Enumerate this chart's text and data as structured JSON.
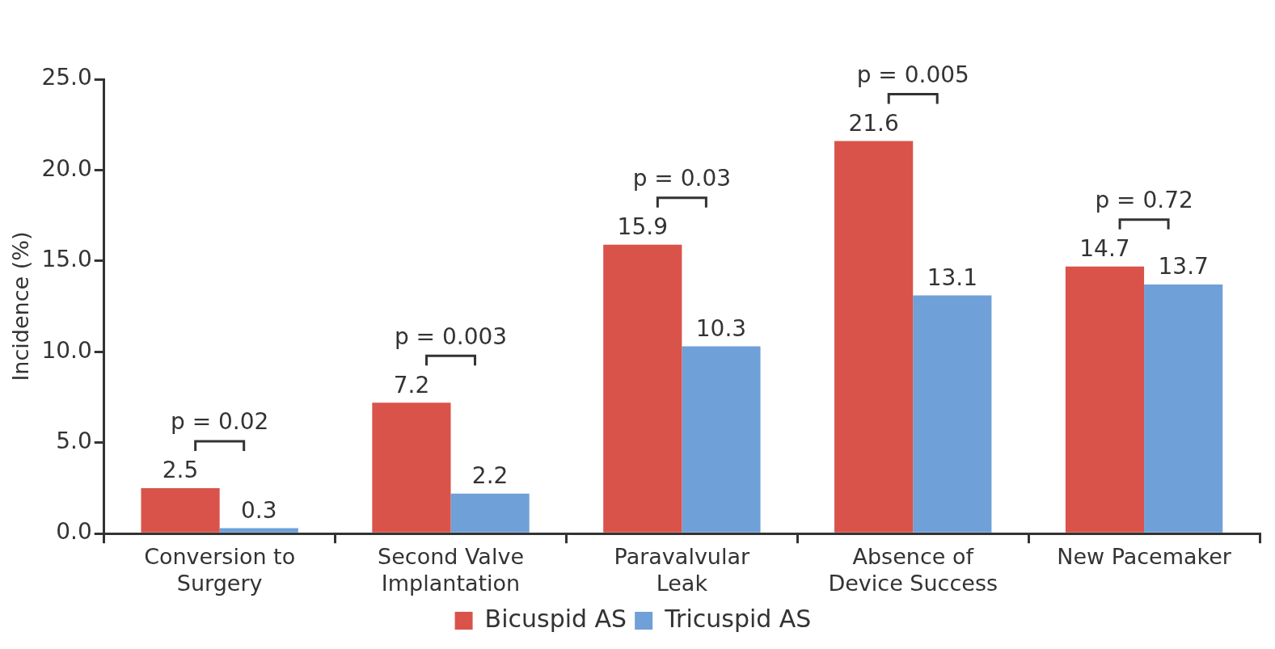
{
  "chart_data": {
    "type": "bar",
    "ylabel": "Incidence (%)",
    "categories": [
      "Conversion to\nSurgery",
      "Second Valve\nImplantation",
      "Paravalvular\nLeak",
      "Absence of\nDevice Success",
      "New Pacemaker"
    ],
    "series": [
      {
        "name": "Bicuspid AS",
        "color": "#d9534a",
        "values": [
          2.5,
          7.2,
          15.9,
          21.6,
          14.7
        ]
      },
      {
        "name": "Tricuspid AS",
        "color": "#6fa0d8",
        "values": [
          0.3,
          2.2,
          10.3,
          13.1,
          13.7
        ]
      }
    ],
    "ylim": [
      0,
      25
    ],
    "yticks": [
      {
        "value": 0,
        "label": "0.0"
      },
      {
        "value": 5,
        "label": "5.0"
      },
      {
        "value": 10,
        "label": "10.0"
      },
      {
        "value": 15,
        "label": "15.0"
      },
      {
        "value": 20,
        "label": "20.0"
      },
      {
        "value": 25,
        "label": "25.0"
      }
    ],
    "data_labels": true,
    "grid": false,
    "legend": "bottom",
    "annotations": [
      "p = 0.02",
      "p = 0.003",
      "p = 0.03",
      "p = 0.005",
      "p = 0.72"
    ]
  }
}
